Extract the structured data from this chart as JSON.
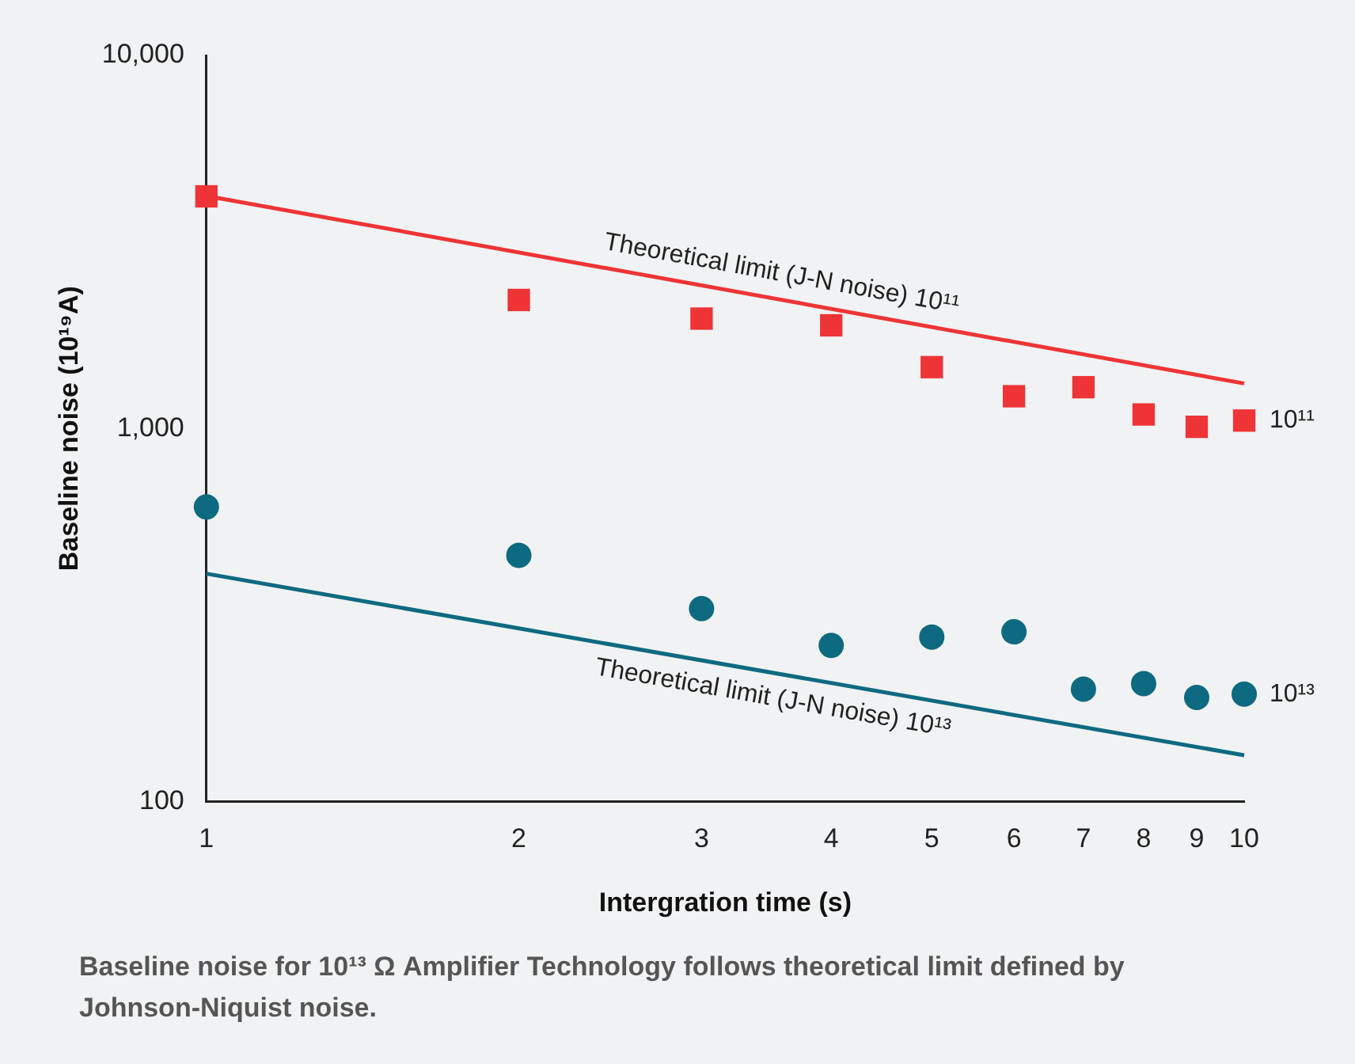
{
  "chart_data": {
    "type": "scatter",
    "xlabel": "Intergration time (s)",
    "ylabel": "Baseline noise (10¹⁹A)",
    "log": "xy",
    "grid": false,
    "legend": false,
    "xlim": [
      1,
      10
    ],
    "xticks": [
      1,
      2,
      3,
      4,
      5,
      6,
      7,
      8,
      9,
      10
    ],
    "ylim": [
      100,
      10000
    ],
    "yticks": [
      {
        "value": 100,
        "label": "100"
      },
      {
        "value": 1000,
        "label": "1,000"
      },
      {
        "value": 10000,
        "label": "10,000"
      }
    ],
    "series": [
      {
        "name": "10¹¹",
        "marker": "square",
        "color": "#ee3436",
        "x": [
          1,
          2,
          3,
          4,
          5,
          6,
          7,
          8,
          9,
          10
        ],
        "values": [
          4190,
          2210,
          1970,
          1890,
          1460,
          1220,
          1290,
          1090,
          1010,
          1050
        ]
      },
      {
        "name": "10¹³",
        "marker": "circle",
        "color": "#0e6a80",
        "x": [
          1,
          2,
          3,
          4,
          5,
          6,
          7,
          8,
          9,
          10
        ],
        "values": [
          616,
          457,
          329,
          262,
          276,
          285,
          200,
          207,
          190,
          194
        ]
      },
      {
        "name": "Theoretical limit (J-N noise) 10¹¹",
        "type": "line",
        "marker": "none",
        "line_style": "solid",
        "color": "#ee3436",
        "x": [
          1,
          10
        ],
        "values": [
          4200,
          1320
        ]
      },
      {
        "name": "Theoretical limit (J-N noise) 10¹³",
        "type": "line",
        "marker": "none",
        "line_style": "solid",
        "color": "#0e6a80",
        "x": [
          1,
          10
        ],
        "values": [
          408,
          133
        ]
      }
    ],
    "annotations": [
      "Baseline noise for 10¹³ Ω Amplifier Technology follows theoretical limit defined by Johnson-Niquist noise."
    ]
  }
}
